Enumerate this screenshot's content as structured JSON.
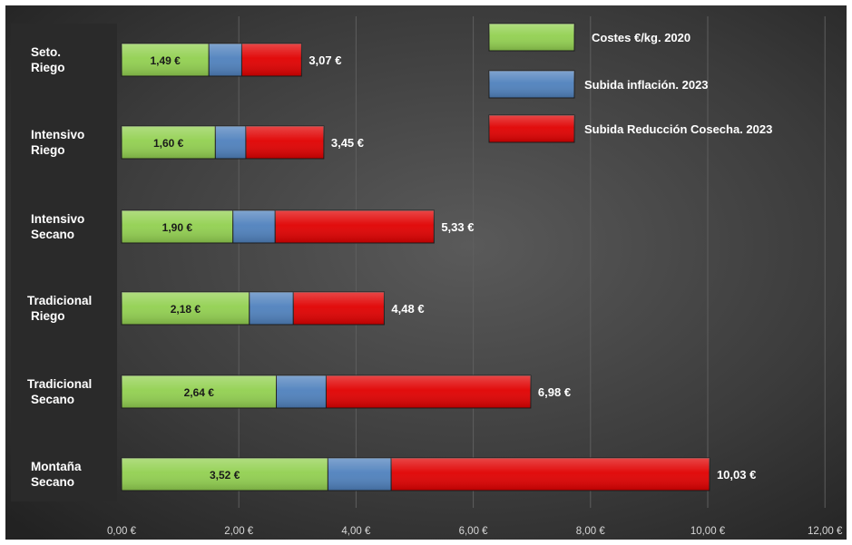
{
  "chart_data": {
    "type": "bar",
    "orientation": "horizontal",
    "stacked": true,
    "categories": [
      [
        "Seto.",
        "Riego"
      ],
      [
        "Intensivo",
        "Riego"
      ],
      [
        "Intensivo",
        "Secano"
      ],
      [
        "Tradicional",
        "Riego"
      ],
      [
        "Tradicional",
        "Secano"
      ],
      [
        "Montaña",
        "Secano"
      ]
    ],
    "series": [
      {
        "name": "Costes €/kg. 2020",
        "color": "#92d050",
        "values": [
          1.49,
          1.6,
          1.9,
          2.18,
          2.64,
          3.52
        ]
      },
      {
        "name": "Subida inflación. 2023",
        "color": "#4f81bd",
        "values": [
          0.56,
          0.52,
          0.72,
          0.75,
          0.85,
          1.08
        ]
      },
      {
        "name": "Subida Reducción Cosecha. 2023",
        "color": "#e00000",
        "values": [
          1.02,
          1.33,
          2.71,
          1.55,
          3.49,
          5.43
        ]
      }
    ],
    "base_labels": [
      "1,49 €",
      "1,60 €",
      "1,90 €",
      "2,18 €",
      "2,64 €",
      "3,52 €"
    ],
    "total_labels": [
      "3,07 €",
      "3,45 €",
      "5,33 €",
      "4,48 €",
      "6,98 €",
      "10,03 €"
    ],
    "x_ticks": [
      {
        "value": 0,
        "label": "0,00 €"
      },
      {
        "value": 2,
        "label": "2,00 €"
      },
      {
        "value": 4,
        "label": "4,00 €"
      },
      {
        "value": 6,
        "label": "6,00 €"
      },
      {
        "value": 8,
        "label": "8,00 €"
      },
      {
        "value": 10,
        "label": "10,00 €"
      },
      {
        "value": 12,
        "label": "12,00 €"
      }
    ],
    "xlim": [
      0,
      12
    ],
    "grid": true,
    "legend_position": "top-right",
    "title": "",
    "xlabel": "",
    "ylabel": "",
    "colors": {
      "background": "#3c3c3c",
      "category_panel": "#2c2c2c",
      "grid": "#5e5e5e",
      "text": "#ffffff",
      "inner_label": "#1a1a1a"
    }
  }
}
